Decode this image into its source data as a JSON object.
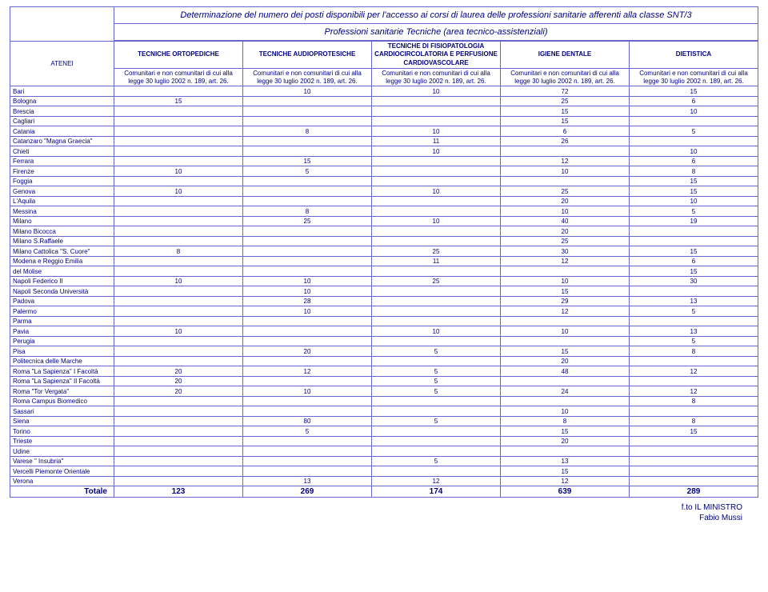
{
  "title": "Determinazione del numero dei posti disponibili per l'accesso ai corsi di laurea delle professioni sanitarie afferenti alla classe SNT/3",
  "subtitle": "Professioni sanitarie Tecniche (area tecnico-assistenziali)",
  "atenei_label": "ATENEI",
  "columns": [
    "TECNICHE ORTOPEDICHE",
    "TECNICHE AUDIOPROTESICHE",
    "TECNICHE DI FISIOPATOLOGIA CARDIOCIRCOLATORIA E PERFUSIONE CARDIOVASCOLARE",
    "IGIENE DENTALE",
    "DIETISTICA"
  ],
  "subheaders": [
    "Comunitari e non comunitari di cui alla legge 30 luglio 2002 n. 189, art. 26.",
    "Comunitari e non comunitari di cui alla legge 30 luglio 2002 n. 189, art. 26.",
    "Comunitari e non comunitari di cui alla legge 30 luglio 2002 n. 189, art. 26.",
    "Comunitari e non comunitari di cui alla legge 30 luglio 2002 n. 189, art. 26.",
    "Comunitari e non comunitari di cui alla legge 30 luglio 2002 n. 189, art. 26."
  ],
  "rows": [
    {
      "u": "Bari",
      "v": [
        "",
        "10",
        "10",
        "72",
        "15"
      ]
    },
    {
      "u": "Bologna",
      "v": [
        "15",
        "",
        "",
        "25",
        "6"
      ]
    },
    {
      "u": "Brescia",
      "v": [
        "",
        "",
        "",
        "15",
        "10"
      ]
    },
    {
      "u": "Cagliari",
      "v": [
        "",
        "",
        "",
        "15",
        ""
      ]
    },
    {
      "u": "Catania",
      "v": [
        "",
        "8",
        "10",
        "6",
        "5"
      ]
    },
    {
      "u": "Catanzaro \"Magna Graecia\"",
      "v": [
        "",
        "",
        "11",
        "26",
        ""
      ]
    },
    {
      "u": "Chieti",
      "v": [
        "",
        "",
        "10",
        "",
        "10"
      ]
    },
    {
      "u": "Ferrara",
      "v": [
        "",
        "15",
        "",
        "12",
        "6"
      ]
    },
    {
      "u": "Firenze",
      "v": [
        "10",
        "5",
        "",
        "10",
        "8"
      ]
    },
    {
      "u": "Foggia",
      "v": [
        "",
        "",
        "",
        "",
        "15"
      ]
    },
    {
      "u": "Genova",
      "v": [
        "10",
        "",
        "10",
        "25",
        "15"
      ]
    },
    {
      "u": "L'Aquila",
      "v": [
        "",
        "",
        "",
        "20",
        "10"
      ]
    },
    {
      "u": "Messina",
      "v": [
        "",
        "8",
        "",
        "10",
        "5"
      ]
    },
    {
      "u": "Milano",
      "v": [
        "",
        "25",
        "10",
        "40",
        "19"
      ]
    },
    {
      "u": "Milano Bicocca",
      "v": [
        "",
        "",
        "",
        "20",
        ""
      ]
    },
    {
      "u": "Milano S.Raffaele",
      "v": [
        "",
        "",
        "",
        "25",
        ""
      ]
    },
    {
      "u": "Milano Cattolica \"S. Cuore\"",
      "v": [
        "8",
        "",
        "25",
        "30",
        "15"
      ]
    },
    {
      "u": "Modena e Reggio Emilia",
      "v": [
        "",
        "",
        "11",
        "12",
        "6"
      ]
    },
    {
      "u": "del Molise",
      "v": [
        "",
        "",
        "",
        "",
        "15"
      ]
    },
    {
      "u": "Napoli Federico II",
      "v": [
        "10",
        "10",
        "25",
        "10",
        "30"
      ]
    },
    {
      "u": "Napoli Seconda Università",
      "v": [
        "",
        "10",
        "",
        "15",
        ""
      ]
    },
    {
      "u": "Padova",
      "v": [
        "",
        "28",
        "",
        "29",
        "13"
      ]
    },
    {
      "u": "Palermo",
      "v": [
        "",
        "10",
        "",
        "12",
        "5"
      ]
    },
    {
      "u": "Parma",
      "v": [
        "",
        "",
        "",
        "",
        ""
      ]
    },
    {
      "u": "Pavia",
      "v": [
        "10",
        "",
        "10",
        "10",
        "13"
      ]
    },
    {
      "u": "Perugia",
      "v": [
        "",
        "",
        "",
        "",
        "5"
      ]
    },
    {
      "u": "Pisa",
      "v": [
        "",
        "20",
        "5",
        "15",
        "8"
      ]
    },
    {
      "u": "Politecnica delle Marche",
      "v": [
        "",
        "",
        "",
        "20",
        ""
      ]
    },
    {
      "u": "Roma \"La Sapienza\" I Facoltà",
      "v": [
        "20",
        "12",
        "5",
        "48",
        "12"
      ]
    },
    {
      "u": "Roma \"La Sapienza\" II Facoltà",
      "v": [
        "20",
        "",
        "5",
        "",
        ""
      ]
    },
    {
      "u": "Roma \"Tor Vergata\"",
      "v": [
        "20",
        "10",
        "5",
        "24",
        "12"
      ]
    },
    {
      "u": "Roma Campus Biomedico",
      "v": [
        "",
        "",
        "",
        "",
        "8"
      ]
    },
    {
      "u": "Sassari",
      "v": [
        "",
        "",
        "",
        "10",
        ""
      ]
    },
    {
      "u": "Siena",
      "v": [
        "",
        "80",
        "5",
        "8",
        "8"
      ]
    },
    {
      "u": "Torino",
      "v": [
        "",
        "5",
        "",
        "15",
        "15"
      ]
    },
    {
      "u": "Trieste",
      "v": [
        "",
        "",
        "",
        "20",
        ""
      ]
    },
    {
      "u": "Udine",
      "v": [
        "",
        "",
        "",
        "",
        ""
      ]
    },
    {
      "u": "Varese \" Insubria\"",
      "v": [
        "",
        "",
        "5",
        "13",
        ""
      ]
    },
    {
      "u": "Vercelli Piemonte Orientale",
      "v": [
        "",
        "",
        "",
        "15",
        ""
      ]
    },
    {
      "u": "Verona",
      "v": [
        "",
        "13",
        "12",
        "12",
        ""
      ]
    }
  ],
  "totale_label": "Totale",
  "totale": [
    "123",
    "269",
    "174",
    "639",
    "289"
  ],
  "footer1": "f.to IL MINISTRO",
  "footer2": "Fabio Mussi",
  "colors": {
    "border": "#6666cc",
    "text": "#00007f",
    "background": "#ffffff"
  },
  "typography": {
    "title_fontsize": 11,
    "header_fontsize": 9,
    "subheader_fontsize": 6,
    "cell_fontsize": 9,
    "footer_fontsize": 10
  }
}
